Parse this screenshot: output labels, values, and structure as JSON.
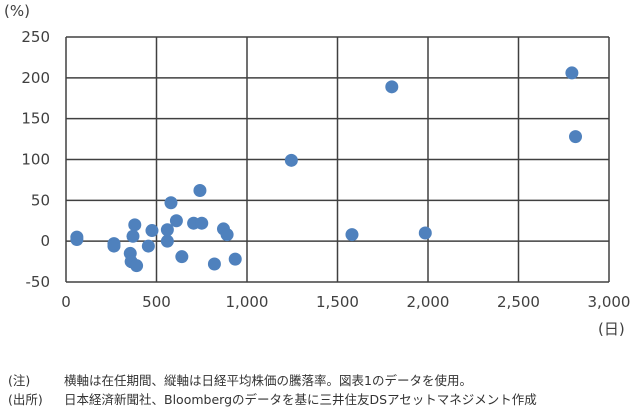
{
  "chart_data": {
    "type": "scatter",
    "y_unit": "(%)",
    "x_unit": "(日)",
    "xlim": [
      0,
      3000
    ],
    "ylim": [
      -50,
      250
    ],
    "x_ticks": [
      0,
      500,
      1000,
      1500,
      2000,
      2500,
      3000
    ],
    "x_tick_labels": [
      "0",
      "500",
      "1,000",
      "1,500",
      "2,000",
      "2,500",
      "3,000"
    ],
    "y_ticks": [
      250,
      200,
      150,
      100,
      50,
      0,
      -50
    ],
    "y_tick_labels": [
      "250",
      "200",
      "150",
      "100",
      "50",
      "0",
      "-50"
    ],
    "grid": true,
    "marker_color": "#4f81bd",
    "points": [
      {
        "x": 60,
        "y": 5
      },
      {
        "x": 60,
        "y": 2
      },
      {
        "x": 265,
        "y": -3
      },
      {
        "x": 265,
        "y": -6
      },
      {
        "x": 355,
        "y": -15
      },
      {
        "x": 360,
        "y": -25
      },
      {
        "x": 370,
        "y": 6
      },
      {
        "x": 380,
        "y": 20
      },
      {
        "x": 390,
        "y": -30
      },
      {
        "x": 455,
        "y": -6
      },
      {
        "x": 475,
        "y": 13
      },
      {
        "x": 560,
        "y": 14
      },
      {
        "x": 560,
        "y": 0
      },
      {
        "x": 580,
        "y": 47
      },
      {
        "x": 610,
        "y": 25
      },
      {
        "x": 640,
        "y": -19
      },
      {
        "x": 705,
        "y": 22
      },
      {
        "x": 740,
        "y": 62
      },
      {
        "x": 750,
        "y": 22
      },
      {
        "x": 820,
        "y": -28
      },
      {
        "x": 870,
        "y": 15
      },
      {
        "x": 890,
        "y": 8
      },
      {
        "x": 935,
        "y": -22
      },
      {
        "x": 1245,
        "y": 99
      },
      {
        "x": 1580,
        "y": 8
      },
      {
        "x": 1800,
        "y": 189
      },
      {
        "x": 1985,
        "y": 10
      },
      {
        "x": 2795,
        "y": 206
      },
      {
        "x": 2815,
        "y": 128
      }
    ]
  },
  "notes": [
    {
      "label": "(注)",
      "text": "横軸は在任期間、縦軸は日経平均株価の騰落率。図表1のデータを使用。"
    },
    {
      "label": "(出所)",
      "text": "日本経済新聞社、Bloombergのデータを基に三井住友DSアセットマネジメント作成"
    }
  ]
}
